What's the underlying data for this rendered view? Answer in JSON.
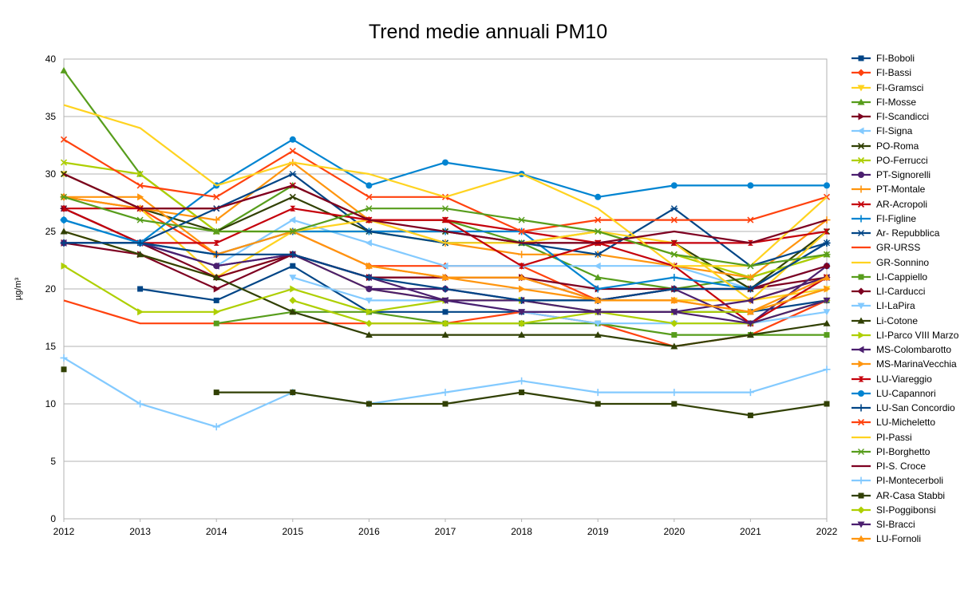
{
  "chart_data": {
    "type": "line",
    "title": "Trend medie annuali PM10",
    "xlabel": "",
    "ylabel": "µg/m³",
    "ylim": [
      0,
      40
    ],
    "yticks": [
      "0",
      "5",
      "10",
      "15",
      "20",
      "25",
      "30",
      "35",
      "40"
    ],
    "ytick_values": [
      0,
      5,
      10,
      15,
      20,
      25,
      30,
      35,
      40
    ],
    "categories": [
      "2012",
      "2013",
      "2014",
      "2015",
      "2016",
      "2017",
      "2018",
      "2019",
      "2020",
      "2021",
      "2022"
    ],
    "grid": true,
    "legend_position": "right",
    "series": [
      {
        "name": "FI-Boboli",
        "color": "#004586",
        "marker": "square",
        "values": [
          null,
          20,
          19,
          22,
          18,
          18,
          18,
          18,
          18,
          18,
          19
        ]
      },
      {
        "name": "FI-Bassi",
        "color": "#ff420e",
        "marker": "diamond",
        "values": [
          28,
          27,
          23,
          25,
          22,
          22,
          22,
          19,
          19,
          19,
          21
        ]
      },
      {
        "name": "FI-Gramsci",
        "color": "#ffd320",
        "marker": "triangle-down",
        "values": [
          30,
          27,
          21,
          23,
          20,
          19,
          19,
          19,
          19,
          19,
          20
        ]
      },
      {
        "name": "FI-Mosse",
        "color": "#579d1c",
        "marker": "triangle",
        "values": [
          39,
          30,
          25,
          29,
          26,
          26,
          24,
          21,
          20,
          21,
          23
        ]
      },
      {
        "name": "FI-Scandicci",
        "color": "#7e0021",
        "marker": "arrow-right",
        "values": [
          24,
          23,
          20,
          23,
          21,
          21,
          21,
          20,
          20,
          20,
          21
        ]
      },
      {
        "name": "FI-Signa",
        "color": "#83caff",
        "marker": "arrow-left",
        "values": [
          24,
          24,
          22,
          26,
          24,
          22,
          22,
          22,
          22,
          20,
          22
        ]
      },
      {
        "name": "PO-Roma",
        "color": "#314004",
        "marker": "xcross",
        "values": [
          30,
          27,
          25,
          28,
          25,
          25,
          24,
          24,
          24,
          20,
          25
        ]
      },
      {
        "name": "PO-Ferrucci",
        "color": "#aecf00",
        "marker": "xcross",
        "values": [
          31,
          30,
          25,
          25,
          25,
          24,
          24,
          25,
          23,
          21,
          23
        ]
      },
      {
        "name": "PT-Signorelli",
        "color": "#4b1f6f",
        "marker": "circle",
        "values": [
          24,
          24,
          22,
          23,
          20,
          20,
          19,
          19,
          20,
          17,
          22
        ]
      },
      {
        "name": "PT-Montale",
        "color": "#ff950e",
        "marker": "plus",
        "values": [
          28,
          27,
          26,
          31,
          26,
          24,
          23,
          23,
          22,
          21,
          26
        ]
      },
      {
        "name": "AR-Acropoli",
        "color": "#c5000b",
        "marker": "xcross",
        "values": [
          27,
          27,
          27,
          29,
          26,
          26,
          25,
          24,
          22,
          17,
          21
        ]
      },
      {
        "name": "FI-Figline",
        "color": "#0084d1",
        "marker": "plus",
        "values": [
          26,
          24,
          23,
          25,
          25,
          25,
          25,
          20,
          21,
          20,
          24
        ]
      },
      {
        "name": "Ar- Repubblica",
        "color": "#004586",
        "marker": "star",
        "values": [
          27,
          24,
          27,
          30,
          25,
          24,
          24,
          23,
          27,
          22,
          24
        ]
      },
      {
        "name": "GR-URSS",
        "color": "#ff420e",
        "marker": "none",
        "values": [
          19,
          17,
          17,
          17,
          17,
          17,
          18,
          17,
          15,
          16,
          19
        ]
      },
      {
        "name": "GR-Sonnino",
        "color": "#ffd320",
        "marker": "none",
        "values": [
          25,
          23,
          21,
          25,
          26,
          24,
          24,
          25,
          24,
          19,
          25
        ]
      },
      {
        "name": "LI-Cappiello",
        "color": "#579d1c",
        "marker": "square",
        "values": [
          null,
          null,
          17,
          18,
          18,
          17,
          17,
          17,
          16,
          16,
          16
        ]
      },
      {
        "name": "LI-Carducci",
        "color": "#7e0021",
        "marker": "diamond",
        "values": [
          27,
          24,
          21,
          23,
          21,
          21,
          21,
          19,
          20,
          20,
          22
        ]
      },
      {
        "name": "LI-LaPira",
        "color": "#83caff",
        "marker": "triangle-down",
        "values": [
          null,
          null,
          null,
          21,
          19,
          19,
          18,
          17,
          17,
          17,
          18
        ]
      },
      {
        "name": "Li-Cotone",
        "color": "#314004",
        "marker": "triangle",
        "values": [
          25,
          23,
          21,
          18,
          16,
          16,
          16,
          16,
          15,
          16,
          17
        ]
      },
      {
        "name": "LI-Parco VIII Marzo",
        "color": "#aecf00",
        "marker": "arrow-right",
        "values": [
          22,
          18,
          18,
          20,
          18,
          19,
          19,
          18,
          18,
          18,
          20
        ]
      },
      {
        "name": "MS-Colombarotto",
        "color": "#4b1f6f",
        "marker": "arrow-left",
        "values": [
          24,
          24,
          22,
          23,
          21,
          19,
          19,
          18,
          18,
          19,
          21
        ]
      },
      {
        "name": "MS-MarinaVecchia",
        "color": "#ff950e",
        "marker": "arrow-right",
        "values": [
          28,
          28,
          23,
          25,
          22,
          21,
          20,
          19,
          19,
          18,
          20
        ]
      },
      {
        "name": "LU-Viareggio",
        "color": "#c5000b",
        "marker": "hourglass",
        "values": [
          27,
          24,
          24,
          27,
          26,
          26,
          22,
          24,
          24,
          24,
          25
        ]
      },
      {
        "name": "LU-Capannori",
        "color": "#0084d1",
        "marker": "circle",
        "values": [
          26,
          24,
          29,
          33,
          29,
          31,
          30,
          28,
          29,
          29,
          29
        ]
      },
      {
        "name": "LU-San Concordio",
        "color": "#004586",
        "marker": "plus",
        "values": [
          24,
          24,
          23,
          23,
          21,
          20,
          19,
          19,
          20,
          20,
          24
        ]
      },
      {
        "name": "LU-Micheletto",
        "color": "#ff420e",
        "marker": "xcross",
        "values": [
          33,
          29,
          28,
          32,
          28,
          28,
          25,
          26,
          26,
          26,
          28
        ]
      },
      {
        "name": "PI-Passi",
        "color": "#ffd320",
        "marker": "none",
        "values": [
          36,
          34,
          29,
          31,
          30,
          28,
          30,
          27,
          22,
          22,
          28
        ]
      },
      {
        "name": "PI-Borghetto",
        "color": "#579d1c",
        "marker": "star",
        "values": [
          28,
          26,
          25,
          25,
          27,
          27,
          26,
          25,
          23,
          22,
          23
        ]
      },
      {
        "name": "PI-S. Croce",
        "color": "#7e0021",
        "marker": "none",
        "values": [
          30,
          27,
          27,
          29,
          26,
          25,
          24,
          24,
          25,
          24,
          26
        ]
      },
      {
        "name": "PI-Montecerboli",
        "color": "#83caff",
        "marker": "plus",
        "values": [
          14,
          10,
          8,
          11,
          10,
          11,
          12,
          11,
          11,
          11,
          13
        ]
      },
      {
        "name": "AR-Casa Stabbi",
        "color": "#314004",
        "marker": "square",
        "values": [
          13,
          null,
          11,
          11,
          10,
          10,
          11,
          10,
          10,
          9,
          10
        ]
      },
      {
        "name": "SI-Poggibonsi",
        "color": "#aecf00",
        "marker": "diamond",
        "values": [
          null,
          null,
          null,
          19,
          17,
          17,
          17,
          18,
          17,
          17,
          19
        ]
      },
      {
        "name": "SI-Bracci",
        "color": "#4b1f6f",
        "marker": "triangle-down",
        "values": [
          null,
          null,
          null,
          null,
          20,
          19,
          18,
          18,
          18,
          17,
          19
        ]
      },
      {
        "name": "LU-Fornoli",
        "color": "#ff950e",
        "marker": "triangle",
        "values": [
          null,
          null,
          null,
          null,
          22,
          21,
          21,
          19,
          19,
          18,
          21
        ]
      }
    ]
  }
}
